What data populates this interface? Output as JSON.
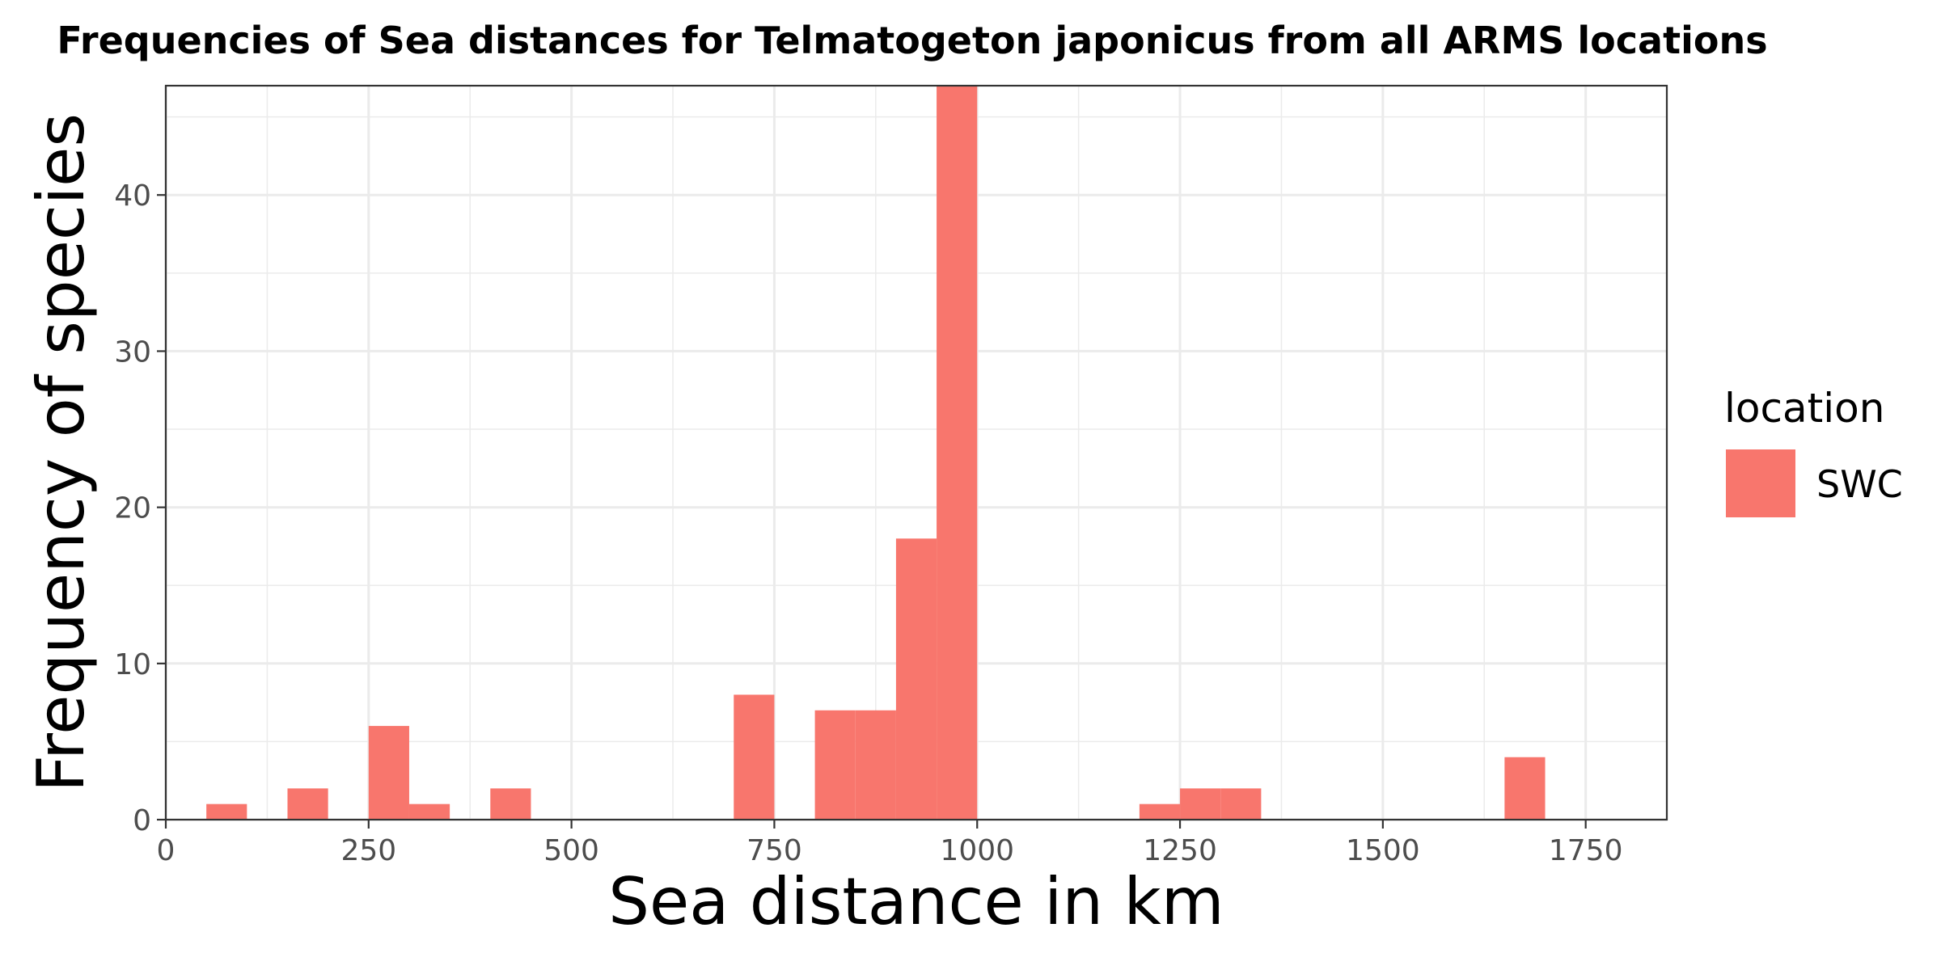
{
  "chart_data": {
    "type": "bar",
    "subtype": "histogram",
    "title": "Frequencies of Sea distances for Telmatogeton japonicus from all ARMS locations",
    "xlabel": "Sea distance in km",
    "ylabel": "Frequency of species",
    "xlim": [
      0,
      1850
    ],
    "ylim": [
      0,
      47
    ],
    "x_ticks": [
      0,
      250,
      500,
      750,
      1000,
      1250,
      1500,
      1750
    ],
    "x_tick_labels": [
      "0",
      "250",
      "500",
      "750",
      "1000",
      "1250",
      "1500",
      "1750"
    ],
    "y_ticks": [
      0,
      10,
      20,
      30,
      40
    ],
    "y_tick_labels": [
      "0",
      "10",
      "20",
      "30",
      "40"
    ],
    "bin_width": 50,
    "grid": true,
    "legend": {
      "title": "location",
      "position": "right"
    },
    "series": [
      {
        "name": "SWC",
        "color": "#f8766d",
        "bins": [
          {
            "x0": 50,
            "x1": 100,
            "count": 1
          },
          {
            "x0": 150,
            "x1": 200,
            "count": 2
          },
          {
            "x0": 250,
            "x1": 300,
            "count": 6
          },
          {
            "x0": 300,
            "x1": 350,
            "count": 1
          },
          {
            "x0": 400,
            "x1": 450,
            "count": 2
          },
          {
            "x0": 700,
            "x1": 750,
            "count": 8
          },
          {
            "x0": 800,
            "x1": 850,
            "count": 7
          },
          {
            "x0": 850,
            "x1": 900,
            "count": 7
          },
          {
            "x0": 900,
            "x1": 950,
            "count": 18
          },
          {
            "x0": 950,
            "x1": 1000,
            "count": 47
          },
          {
            "x0": 1200,
            "x1": 1250,
            "count": 1
          },
          {
            "x0": 1250,
            "x1": 1300,
            "count": 2
          },
          {
            "x0": 1300,
            "x1": 1350,
            "count": 2
          },
          {
            "x0": 1650,
            "x1": 1700,
            "count": 4
          }
        ]
      }
    ]
  }
}
